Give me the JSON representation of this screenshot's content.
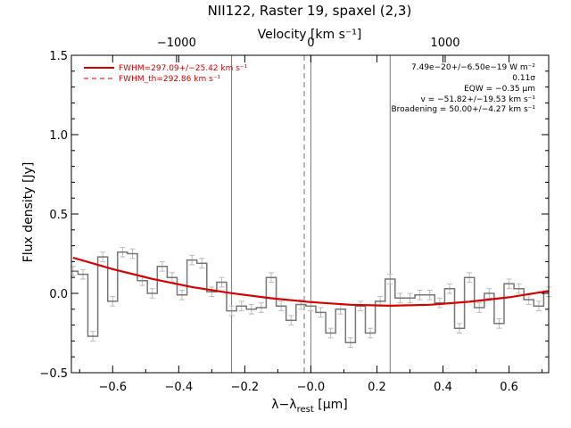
{
  "chart_data": {
    "type": "line",
    "title": "NII122, Raster 19, spaxel (2,3)",
    "xlabel": "λ−λrest [μm]",
    "xlabel_parts": {
      "main": "λ−λ",
      "sub": "rest",
      "unit": " [μm]"
    },
    "ylabel": "Flux density [Jy]",
    "top_axis_label": "Velocity [km s⁻¹]",
    "top_axis_ticks": [
      "−1000",
      "0",
      "1000"
    ],
    "top_axis_tick_values": [
      -1000,
      0,
      1000
    ],
    "rest_wavelength_um": 121.898,
    "xlim": [
      -0.725,
      0.72
    ],
    "ylim": [
      -0.5,
      1.5
    ],
    "x_ticks": [
      -0.6,
      -0.4,
      -0.2,
      0.0,
      0.2,
      0.4,
      0.6
    ],
    "x_tick_labels": [
      "−0.6",
      "−0.4",
      "−0.2",
      "−0.0",
      "0.2",
      "0.4",
      "0.6"
    ],
    "y_ticks": [
      -0.5,
      0.0,
      0.5,
      1.0,
      1.5
    ],
    "y_tick_labels": [
      "−0.5",
      "0.0",
      "0.5",
      "1.0",
      "1.5"
    ],
    "series": [
      {
        "name": "data",
        "style": "step",
        "color": "#777777",
        "x": [
          -0.72,
          -0.69,
          -0.66,
          -0.63,
          -0.6,
          -0.57,
          -0.54,
          -0.51,
          -0.48,
          -0.45,
          -0.42,
          -0.39,
          -0.36,
          -0.33,
          -0.3,
          -0.27,
          -0.24,
          -0.21,
          -0.18,
          -0.15,
          -0.12,
          -0.09,
          -0.06,
          -0.03,
          0.0,
          0.03,
          0.06,
          0.09,
          0.12,
          0.15,
          0.18,
          0.21,
          0.24,
          0.27,
          0.3,
          0.33,
          0.36,
          0.39,
          0.42,
          0.45,
          0.48,
          0.51,
          0.54,
          0.57,
          0.6,
          0.63,
          0.66,
          0.69,
          0.72
        ],
        "y": [
          0.14,
          0.12,
          -0.27,
          0.23,
          -0.05,
          0.26,
          0.25,
          0.08,
          0.0,
          0.17,
          0.1,
          -0.01,
          0.21,
          0.19,
          0.01,
          0.07,
          -0.11,
          -0.08,
          -0.1,
          -0.09,
          0.1,
          -0.08,
          -0.17,
          -0.07,
          -0.08,
          -0.12,
          -0.25,
          -0.1,
          -0.31,
          -0.08,
          -0.25,
          -0.05,
          0.09,
          -0.03,
          -0.03,
          -0.01,
          -0.01,
          -0.06,
          0.03,
          -0.22,
          0.1,
          -0.09,
          0.0,
          -0.19,
          0.06,
          0.03,
          -0.04,
          -0.08,
          0.01
        ],
        "error": 0.03
      },
      {
        "name": "FWHM=297.09+/−25.42 km s⁻¹",
        "style": "solid",
        "color": "#d40000",
        "x": [
          -0.72,
          -0.6,
          -0.48,
          -0.36,
          -0.24,
          -0.12,
          0.0,
          0.12,
          0.24,
          0.36,
          0.48,
          0.6,
          0.72
        ],
        "y": [
          0.225,
          0.153,
          0.091,
          0.04,
          0.001,
          -0.031,
          -0.055,
          -0.072,
          -0.078,
          -0.072,
          -0.053,
          -0.025,
          0.015
        ]
      },
      {
        "name": "FWHM_th=292.86 km s⁻¹",
        "style": "dashed",
        "color": "#d40000",
        "x": [],
        "y": []
      }
    ],
    "vlines": [
      {
        "x": -0.24,
        "style": "solid",
        "color": "#777777"
      },
      {
        "x": -0.02,
        "style": "dashed",
        "color": "#777777"
      },
      {
        "x": 0.0,
        "style": "solid",
        "color": "#777777"
      },
      {
        "x": 0.24,
        "style": "solid",
        "color": "#777777"
      }
    ],
    "annotations": [
      "7.49e−20+/−6.50e−19 W m⁻²",
      "0.11σ",
      "EQW = −0.35 μm",
      "v = −51.82+/−19.53 km s⁻¹",
      "Broadening = 50.00+/−4.27 km s⁻¹"
    ],
    "legend_position": "top-left"
  }
}
